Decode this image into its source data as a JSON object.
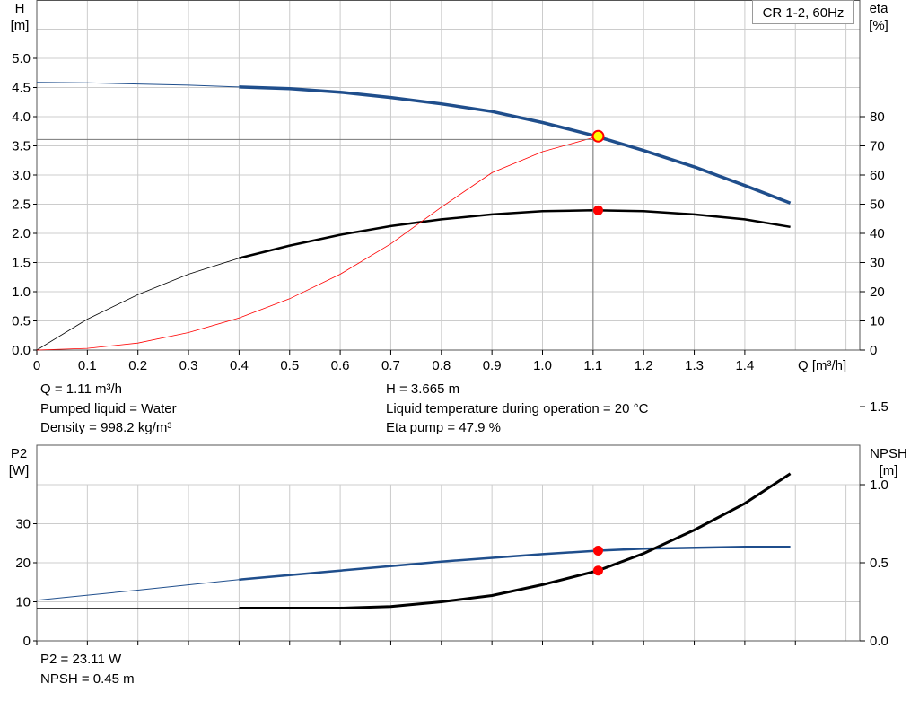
{
  "legend": "CR 1-2, 60Hz",
  "top": {
    "ylabel_left": [
      "H",
      "[m]"
    ],
    "ylabel_right": [
      "eta",
      "[%]"
    ],
    "xlabel": "Q [m³/h]",
    "info_left": [
      "Q = 1.11 m³/h",
      "Pumped liquid = Water",
      "Density = 998.2 kg/m³"
    ],
    "info_right": [
      "H = 3.665 m",
      "Liquid temperature during operation = 20 °C",
      "Eta pump = 47.9 %"
    ]
  },
  "bottom": {
    "ylabel_left": [
      "P2",
      "[W]"
    ],
    "ylabel_right": [
      "NPSH",
      "[m]"
    ],
    "info_left": [
      "P2 = 23.11 W",
      "NPSH = 0.45 m"
    ]
  },
  "colors": {
    "head": "#1f4e8c",
    "eta": "#000000",
    "system": "#ff0000",
    "point": "#ff0000",
    "duty_fill": "#ffff00",
    "grid": "#cccccc"
  },
  "chart_data": [
    {
      "type": "line",
      "x_label": "Q [m³/h]",
      "x_ticks": [
        "0",
        "0.1",
        "0.2",
        "0.3",
        "0.4",
        "0.5",
        "0.6",
        "0.7",
        "0.8",
        "0.9",
        "1.0",
        "1.1",
        "1.2",
        "1.3",
        "1.4"
      ],
      "xlim": [
        0,
        1.6
      ],
      "y_left": {
        "label": "H [m]",
        "ylim": [
          0,
          5.5
        ],
        "ticks": [
          "0.0",
          "0.5",
          "1.0",
          "1.5",
          "2.0",
          "2.5",
          "3.0",
          "3.5",
          "4.0",
          "4.5",
          "5.0"
        ]
      },
      "y_right": {
        "label": "eta [%]",
        "ylim": [
          0,
          110
        ],
        "ticks": [
          "0",
          "10",
          "20",
          "30",
          "40",
          "50",
          "60",
          "70",
          "80"
        ]
      },
      "grid": true,
      "series": [
        {
          "axis": "left",
          "role": "head",
          "x": [
            0,
            0.1,
            0.2,
            0.3,
            0.4,
            0.5,
            0.6,
            0.7,
            0.8,
            0.9,
            1.0,
            1.1,
            1.2,
            1.3,
            1.4,
            1.49
          ],
          "y": [
            4.59,
            4.58,
            4.56,
            4.54,
            4.51,
            4.48,
            4.42,
            4.33,
            4.22,
            4.09,
            3.9,
            3.68,
            3.42,
            3.14,
            2.82,
            2.52
          ],
          "thin_below_x": 0.4
        },
        {
          "axis": "right",
          "role": "eta",
          "x": [
            0,
            0.1,
            0.2,
            0.3,
            0.4,
            0.5,
            0.6,
            0.7,
            0.8,
            0.9,
            1.0,
            1.1,
            1.2,
            1.3,
            1.4,
            1.49
          ],
          "y": [
            0,
            10.6,
            19.0,
            26.0,
            31.5,
            35.8,
            39.5,
            42.5,
            44.8,
            46.5,
            47.6,
            47.9,
            47.6,
            46.5,
            44.8,
            42.2
          ],
          "thin_below_x": 0.4
        },
        {
          "axis": "left",
          "role": "system",
          "x": [
            0,
            0.1,
            0.2,
            0.3,
            0.4,
            0.5,
            0.6,
            0.7,
            0.8,
            0.9,
            1.0,
            1.11
          ],
          "y": [
            0.0,
            0.03,
            0.12,
            0.3,
            0.55,
            0.88,
            1.3,
            1.82,
            2.45,
            3.04,
            3.4,
            3.665
          ]
        }
      ],
      "duty_point": {
        "Q": 1.11,
        "H": 3.665
      },
      "eta_point": {
        "Q": 1.11,
        "eta": 47.9
      }
    },
    {
      "type": "line",
      "xlim": [
        0,
        1.6
      ],
      "y_left": {
        "label": "P2 [W]",
        "ylim": [
          0,
          40
        ],
        "ticks": [
          "0",
          "10",
          "20",
          "30"
        ]
      },
      "y_right": {
        "label": "NPSH [m]",
        "ylim": [
          0,
          2.0
        ],
        "ticks": [
          "0.0",
          "0.5",
          "1.0",
          "1.5"
        ]
      },
      "grid": true,
      "series": [
        {
          "axis": "left",
          "role": "p2",
          "x": [
            0,
            0.2,
            0.4,
            0.6,
            0.8,
            1.0,
            1.11,
            1.2,
            1.4,
            1.49
          ],
          "y": [
            10.4,
            13.0,
            15.7,
            18.0,
            20.3,
            22.2,
            23.11,
            23.6,
            24.1,
            24.1
          ],
          "thin_below_x": 0.4
        },
        {
          "axis": "right",
          "role": "npsh",
          "x": [
            0,
            0.4,
            0.6,
            0.7,
            0.8,
            0.9,
            1.0,
            1.11,
            1.2,
            1.3,
            1.4,
            1.49
          ],
          "y": [
            0.21,
            0.21,
            0.21,
            0.22,
            0.25,
            0.29,
            0.36,
            0.45,
            0.56,
            0.71,
            0.88,
            1.07
          ],
          "thin_below_x": 0.4
        }
      ],
      "p2_point": {
        "Q": 1.11,
        "P2": 23.11
      },
      "npsh_point": {
        "Q": 1.11,
        "NPSH": 0.45
      }
    }
  ]
}
